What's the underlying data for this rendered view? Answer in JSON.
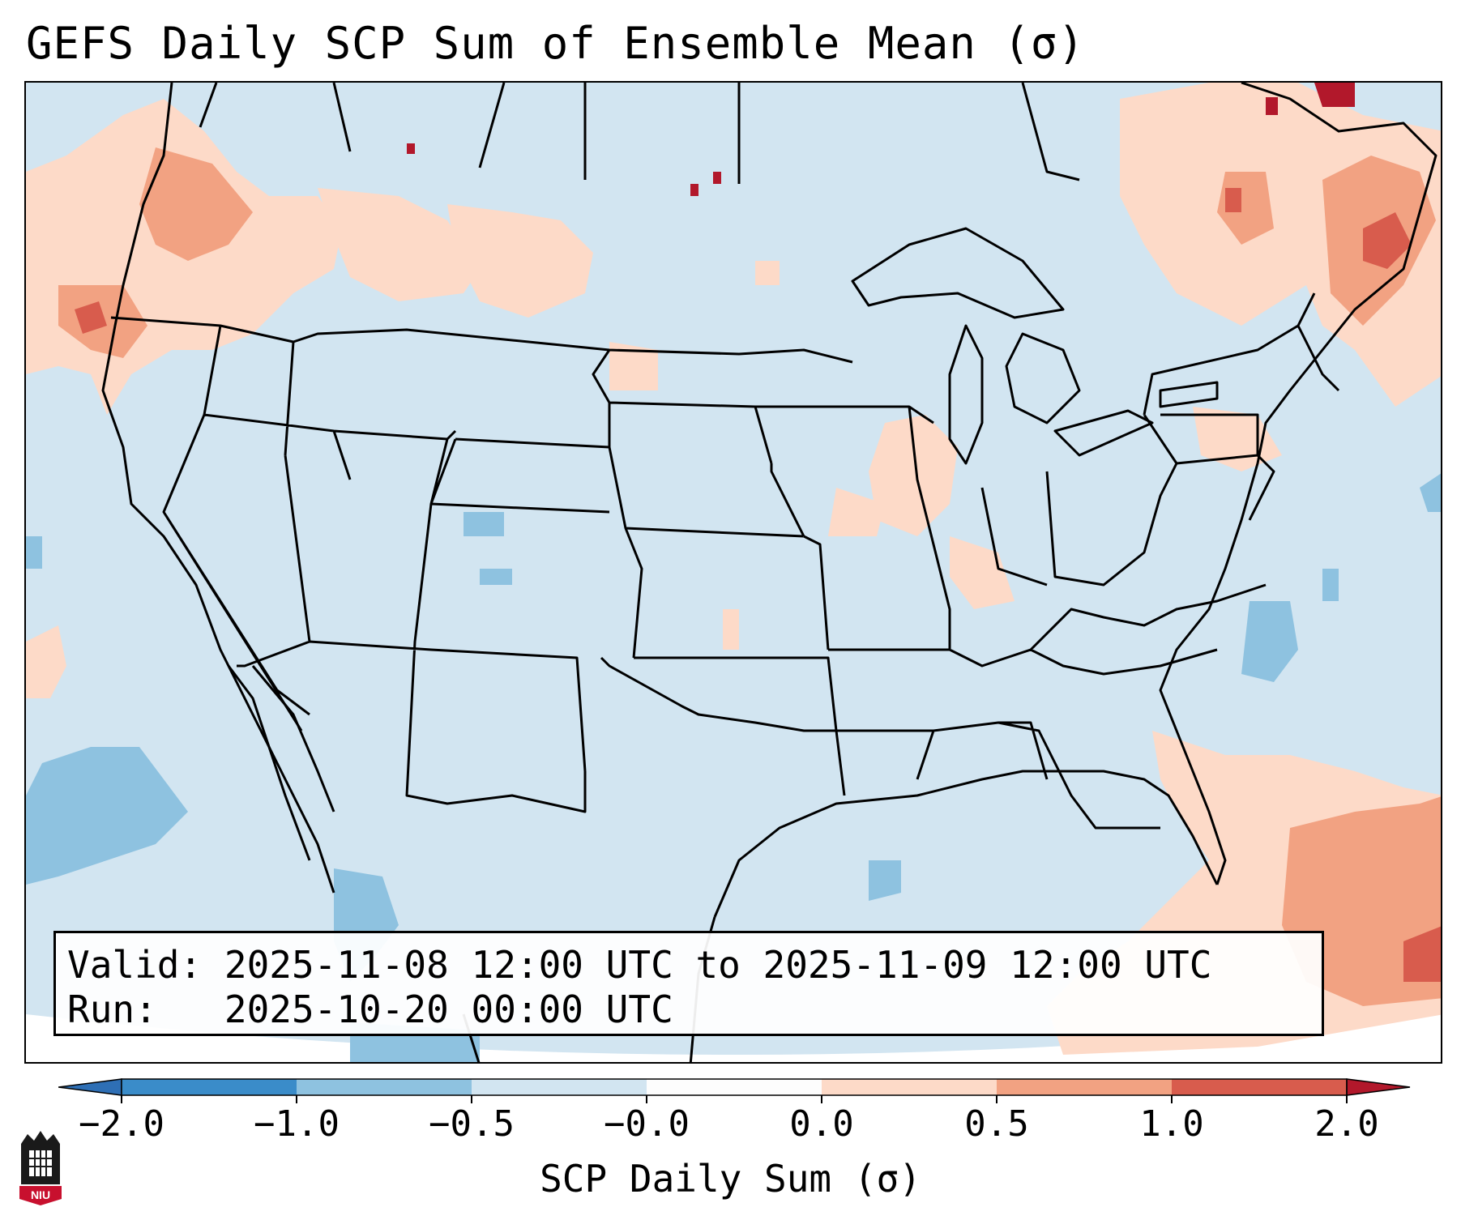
{
  "title": "GEFS Daily SCP Sum of Ensemble Mean (σ)",
  "info": {
    "valid_label": "Valid:",
    "valid_value": "2025-11-08 12:00 UTC to 2025-11-09 12:00 UTC",
    "run_label": "Run:",
    "run_value": "2025-10-20 00:00 UTC"
  },
  "colorbar": {
    "label": "SCP Daily Sum (σ)",
    "ticks": [
      "−2.0",
      "−1.0",
      "−0.5",
      "−0.0",
      "0.0",
      "0.5",
      "1.0",
      "2.0"
    ],
    "colors": [
      "#3a8cc9",
      "#8ec2e0",
      "#d2e5f1",
      "#fdfdfd",
      "#fddac8",
      "#f2a282",
      "#d85c4d"
    ],
    "under_color": "#2e6fb5",
    "over_color": "#b2182b"
  },
  "map": {
    "background_color": "#d2e5f1",
    "region": "Contiguous United States"
  },
  "logo": {
    "text": "NIU"
  }
}
